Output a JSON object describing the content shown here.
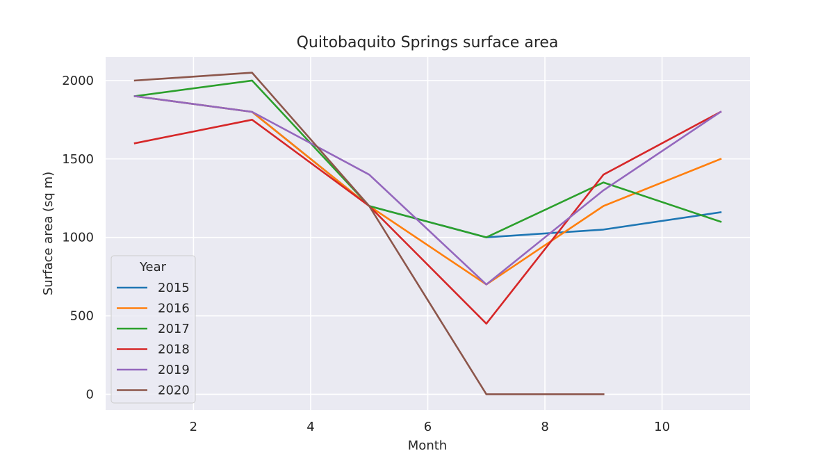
{
  "chart_data": {
    "type": "line",
    "title": "Quitobaquito Springs surface area",
    "xlabel": "Month",
    "ylabel": "Surface area (sq m)",
    "xlim": [
      0.5,
      11.5
    ],
    "ylim": [
      -100,
      2150
    ],
    "xticks": [
      2,
      4,
      6,
      8,
      10
    ],
    "yticks": [
      0,
      500,
      1000,
      1500,
      2000
    ],
    "grid": true,
    "background": "#eaeaf2",
    "legend": {
      "title": "Year",
      "placement": "lower-left"
    },
    "series": [
      {
        "name": "2015",
        "color": "#1f77b4",
        "x": [
          1,
          3,
          5,
          7,
          9,
          11
        ],
        "y": [
          1900,
          1800,
          1200,
          1000,
          1050,
          1160
        ]
      },
      {
        "name": "2016",
        "color": "#ff7f0e",
        "x": [
          1,
          3,
          5,
          7,
          9,
          11
        ],
        "y": [
          1900,
          1800,
          1200,
          700,
          1200,
          1500
        ]
      },
      {
        "name": "2017",
        "color": "#2ca02c",
        "x": [
          1,
          3,
          5,
          7,
          9,
          11
        ],
        "y": [
          1900,
          2000,
          1200,
          1000,
          1350,
          1100
        ]
      },
      {
        "name": "2018",
        "color": "#d62728",
        "x": [
          1,
          3,
          5,
          7,
          9,
          11
        ],
        "y": [
          1600,
          1750,
          1200,
          450,
          1400,
          1800
        ]
      },
      {
        "name": "2019",
        "color": "#9467bd",
        "x": [
          1,
          3,
          5,
          7,
          9,
          11
        ],
        "y": [
          1900,
          1800,
          1400,
          700,
          1300,
          1800
        ]
      },
      {
        "name": "2020",
        "color": "#8c564b",
        "x": [
          1,
          3,
          5,
          7,
          9
        ],
        "y": [
          2000,
          2050,
          1200,
          0,
          0
        ]
      }
    ]
  }
}
